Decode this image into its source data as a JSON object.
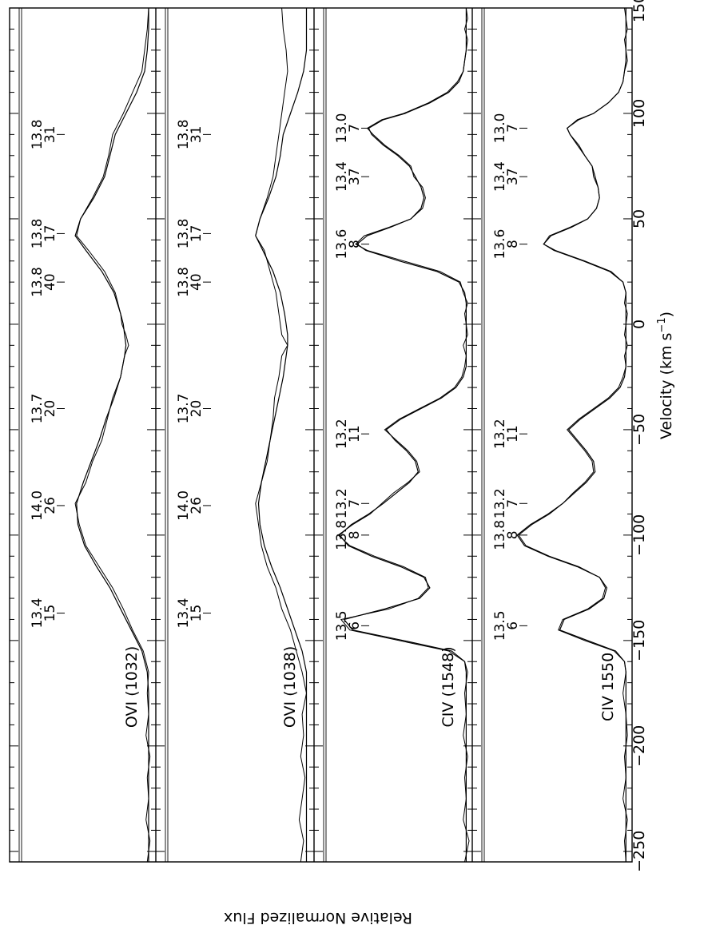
{
  "chart_data": {
    "type": "line",
    "orientation": "rotated-90",
    "xlabel": "Velocity (km s",
    "xlabel_sup": "−1",
    "xlabel_close": ")",
    "ylabel": "Relative Normalized Flux",
    "xlim": [
      -255,
      150
    ],
    "ylim": [
      0,
      1.05
    ],
    "x_ticks": [
      -250,
      -200,
      -150,
      -100,
      -50,
      0,
      50,
      100,
      150
    ],
    "x_tick_labels": [
      "−250",
      "−200",
      "−150",
      "−100",
      "−50",
      "0",
      "50",
      "100",
      "150"
    ],
    "panels": [
      {
        "label": "OVI (1032)",
        "components": [
          {
            "v": -137,
            "logN": "13.4",
            "b": "15"
          },
          {
            "v": -86,
            "logN": "14.0",
            "b": "26"
          },
          {
            "v": -40,
            "logN": "13.7",
            "b": "20"
          },
          {
            "v": 20,
            "logN": "13.8",
            "b": "40"
          },
          {
            "v": 43,
            "logN": "13.8",
            "b": "17"
          },
          {
            "v": 90,
            "logN": "13.8",
            "b": "31"
          }
        ],
        "data_x": [
          -255,
          -245,
          -235,
          -225,
          -215,
          -205,
          -195,
          -185,
          -175,
          -165,
          -155,
          -145,
          -135,
          -125,
          -115,
          -105,
          -95,
          -85,
          -75,
          -65,
          -55,
          -45,
          -35,
          -25,
          -15,
          -10,
          -5,
          0,
          5,
          15,
          25,
          35,
          42,
          50,
          60,
          70,
          80,
          90,
          100,
          110,
          120,
          130,
          140,
          150
        ],
        "data_y": [
          0.96,
          0.98,
          0.95,
          0.97,
          0.96,
          0.98,
          0.95,
          0.97,
          0.96,
          0.97,
          0.93,
          0.85,
          0.78,
          0.7,
          0.6,
          0.5,
          0.45,
          0.42,
          0.5,
          0.55,
          0.62,
          0.66,
          0.7,
          0.76,
          0.79,
          0.82,
          0.8,
          0.77,
          0.76,
          0.72,
          0.64,
          0.52,
          0.43,
          0.46,
          0.55,
          0.63,
          0.67,
          0.7,
          0.78,
          0.85,
          0.92,
          0.94,
          0.96,
          0.97
        ],
        "model_y": [
          0.97,
          0.97,
          0.97,
          0.97,
          0.97,
          0.97,
          0.97,
          0.97,
          0.97,
          0.96,
          0.92,
          0.84,
          0.76,
          0.68,
          0.58,
          0.49,
          0.44,
          0.43,
          0.48,
          0.54,
          0.6,
          0.65,
          0.71,
          0.76,
          0.79,
          0.8,
          0.79,
          0.78,
          0.76,
          0.71,
          0.62,
          0.5,
          0.42,
          0.46,
          0.56,
          0.64,
          0.68,
          0.72,
          0.8,
          0.88,
          0.94,
          0.96,
          0.97,
          0.97
        ]
      },
      {
        "label": "OVI (1038)",
        "components": [
          {
            "v": -137,
            "logN": "13.4",
            "b": "15"
          },
          {
            "v": -86,
            "logN": "14.0",
            "b": "26"
          },
          {
            "v": -40,
            "logN": "13.7",
            "b": "20"
          },
          {
            "v": 20,
            "logN": "13.8",
            "b": "40"
          },
          {
            "v": 43,
            "logN": "13.8",
            "b": "17"
          },
          {
            "v": 90,
            "logN": "13.8",
            "b": "31"
          }
        ],
        "data_x": [
          -255,
          -245,
          -235,
          -225,
          -215,
          -205,
          -195,
          -185,
          -175,
          -165,
          -155,
          -145,
          -135,
          -125,
          -115,
          -105,
          -95,
          -85,
          -75,
          -65,
          -55,
          -45,
          -35,
          -25,
          -15,
          -10,
          -5,
          0,
          5,
          15,
          25,
          35,
          42,
          50,
          60,
          70,
          80,
          90,
          100,
          110,
          120,
          130,
          140,
          150
        ],
        "data_y": [
          0.93,
          0.95,
          0.92,
          0.94,
          0.96,
          0.93,
          0.95,
          0.94,
          0.97,
          0.94,
          0.9,
          0.86,
          0.8,
          0.76,
          0.7,
          0.66,
          0.64,
          0.62,
          0.66,
          0.7,
          0.72,
          0.74,
          0.75,
          0.78,
          0.8,
          0.84,
          0.8,
          0.79,
          0.78,
          0.76,
          0.72,
          0.68,
          0.62,
          0.65,
          0.7,
          0.74,
          0.76,
          0.78,
          0.8,
          0.82,
          0.84,
          0.83,
          0.81,
          0.8
        ],
        "model_y": [
          0.97,
          0.97,
          0.97,
          0.97,
          0.97,
          0.97,
          0.97,
          0.97,
          0.97,
          0.97,
          0.94,
          0.89,
          0.84,
          0.79,
          0.73,
          0.68,
          0.65,
          0.64,
          0.66,
          0.69,
          0.72,
          0.75,
          0.78,
          0.81,
          0.83,
          0.84,
          0.84,
          0.83,
          0.82,
          0.79,
          0.74,
          0.67,
          0.62,
          0.65,
          0.71,
          0.76,
          0.79,
          0.81,
          0.86,
          0.91,
          0.95,
          0.97,
          0.97,
          0.97
        ]
      },
      {
        "label": "CIV (1548)",
        "components": [
          {
            "v": -143,
            "logN": "13.5",
            "b": "6"
          },
          {
            "v": -100,
            "logN": "13.8",
            "b": "8"
          },
          {
            "v": -85,
            "logN": "13.2",
            "b": "7"
          },
          {
            "v": -52,
            "logN": "13.2",
            "b": "11"
          },
          {
            "v": 38,
            "logN": "13.6",
            "b": "8"
          },
          {
            "v": 70,
            "logN": "13.4",
            "b": "37"
          },
          {
            "v": 93,
            "logN": "13.0",
            "b": "7"
          }
        ],
        "data_x": [
          -255,
          -245,
          -235,
          -225,
          -215,
          -205,
          -195,
          -185,
          -175,
          -165,
          -160,
          -155,
          -150,
          -145,
          -140,
          -135,
          -130,
          -125,
          -120,
          -115,
          -110,
          -105,
          -100,
          -95,
          -90,
          -85,
          -80,
          -75,
          -70,
          -65,
          -60,
          -55,
          -50,
          -45,
          -40,
          -35,
          -30,
          -25,
          -20,
          -15,
          -10,
          -5,
          0,
          5,
          10,
          15,
          20,
          25,
          30,
          35,
          38,
          42,
          46,
          50,
          55,
          60,
          65,
          70,
          75,
          80,
          85,
          90,
          93,
          97,
          100,
          105,
          110,
          115,
          120,
          125,
          130,
          135,
          140,
          145,
          150
        ],
        "data_y": [
          0.97,
          1.0,
          0.96,
          0.98,
          0.97,
          0.99,
          0.96,
          0.98,
          0.97,
          0.99,
          0.97,
          0.86,
          0.52,
          0.18,
          0.12,
          0.45,
          0.65,
          0.72,
          0.7,
          0.55,
          0.35,
          0.18,
          0.1,
          0.2,
          0.32,
          0.4,
          0.48,
          0.58,
          0.66,
          0.64,
          0.58,
          0.5,
          0.42,
          0.52,
          0.66,
          0.8,
          0.9,
          0.95,
          0.97,
          0.98,
          0.96,
          0.99,
          0.98,
          0.97,
          0.99,
          0.96,
          0.94,
          0.8,
          0.55,
          0.3,
          0.22,
          0.28,
          0.45,
          0.6,
          0.68,
          0.7,
          0.68,
          0.62,
          0.6,
          0.52,
          0.42,
          0.34,
          0.3,
          0.4,
          0.55,
          0.72,
          0.85,
          0.92,
          0.96,
          0.97,
          0.98,
          0.99,
          0.97,
          0.99,
          0.98
        ],
        "model_y": [
          0.98,
          0.98,
          0.98,
          0.98,
          0.98,
          0.98,
          0.98,
          0.98,
          0.98,
          0.98,
          0.97,
          0.88,
          0.55,
          0.2,
          0.14,
          0.42,
          0.66,
          0.73,
          0.69,
          0.53,
          0.33,
          0.17,
          0.11,
          0.19,
          0.31,
          0.41,
          0.5,
          0.59,
          0.65,
          0.63,
          0.57,
          0.49,
          0.43,
          0.53,
          0.67,
          0.81,
          0.91,
          0.96,
          0.98,
          0.98,
          0.98,
          0.98,
          0.98,
          0.98,
          0.98,
          0.97,
          0.93,
          0.78,
          0.52,
          0.29,
          0.23,
          0.3,
          0.46,
          0.6,
          0.67,
          0.69,
          0.67,
          0.63,
          0.59,
          0.51,
          0.41,
          0.33,
          0.31,
          0.41,
          0.56,
          0.73,
          0.86,
          0.93,
          0.96,
          0.97,
          0.98,
          0.98,
          0.98,
          0.98,
          0.98
        ]
      },
      {
        "label": "CIV 1550",
        "components": [
          {
            "v": -143,
            "logN": "13.5",
            "b": "6"
          },
          {
            "v": -100,
            "logN": "13.8",
            "b": "8"
          },
          {
            "v": -85,
            "logN": "13.2",
            "b": "7"
          },
          {
            "v": -52,
            "logN": "13.2",
            "b": "11"
          },
          {
            "v": 38,
            "logN": "13.6",
            "b": "8"
          },
          {
            "v": 70,
            "logN": "13.4",
            "b": "37"
          },
          {
            "v": 93,
            "logN": "13.0",
            "b": "7"
          }
        ],
        "data_x": [
          -255,
          -245,
          -235,
          -225,
          -215,
          -205,
          -195,
          -185,
          -175,
          -165,
          -160,
          -155,
          -150,
          -145,
          -140,
          -135,
          -130,
          -125,
          -120,
          -115,
          -110,
          -105,
          -100,
          -95,
          -90,
          -85,
          -80,
          -75,
          -70,
          -65,
          -60,
          -55,
          -50,
          -45,
          -40,
          -35,
          -30,
          -25,
          -20,
          -15,
          -10,
          -5,
          0,
          5,
          10,
          15,
          20,
          25,
          30,
          35,
          38,
          42,
          46,
          50,
          55,
          60,
          65,
          70,
          75,
          80,
          85,
          90,
          93,
          97,
          100,
          105,
          110,
          115,
          120,
          125,
          130,
          135,
          140,
          145,
          150
        ],
        "data_y": [
          0.98,
          0.97,
          0.99,
          0.96,
          0.98,
          0.97,
          0.99,
          0.98,
          0.96,
          0.98,
          0.97,
          0.9,
          0.7,
          0.52,
          0.55,
          0.72,
          0.82,
          0.84,
          0.8,
          0.66,
          0.46,
          0.3,
          0.25,
          0.34,
          0.46,
          0.55,
          0.62,
          0.7,
          0.76,
          0.75,
          0.7,
          0.64,
          0.58,
          0.66,
          0.76,
          0.86,
          0.93,
          0.96,
          0.98,
          0.97,
          0.99,
          0.97,
          0.98,
          0.99,
          0.97,
          0.98,
          0.96,
          0.88,
          0.7,
          0.5,
          0.42,
          0.46,
          0.6,
          0.72,
          0.78,
          0.8,
          0.79,
          0.76,
          0.75,
          0.7,
          0.66,
          0.6,
          0.58,
          0.66,
          0.76,
          0.86,
          0.93,
          0.96,
          0.97,
          0.99,
          0.98,
          0.97,
          0.99,
          0.98,
          0.97
        ],
        "model_y": [
          0.98,
          0.98,
          0.98,
          0.98,
          0.98,
          0.98,
          0.98,
          0.98,
          0.98,
          0.98,
          0.97,
          0.91,
          0.72,
          0.53,
          0.56,
          0.73,
          0.83,
          0.85,
          0.8,
          0.65,
          0.45,
          0.29,
          0.24,
          0.33,
          0.45,
          0.55,
          0.63,
          0.71,
          0.77,
          0.76,
          0.71,
          0.65,
          0.59,
          0.67,
          0.77,
          0.87,
          0.94,
          0.97,
          0.98,
          0.98,
          0.98,
          0.98,
          0.98,
          0.98,
          0.98,
          0.98,
          0.96,
          0.87,
          0.69,
          0.49,
          0.42,
          0.47,
          0.61,
          0.72,
          0.78,
          0.8,
          0.79,
          0.77,
          0.75,
          0.7,
          0.65,
          0.6,
          0.58,
          0.65,
          0.76,
          0.86,
          0.93,
          0.96,
          0.97,
          0.98,
          0.98,
          0.98,
          0.98,
          0.98,
          0.98
        ]
      }
    ]
  }
}
